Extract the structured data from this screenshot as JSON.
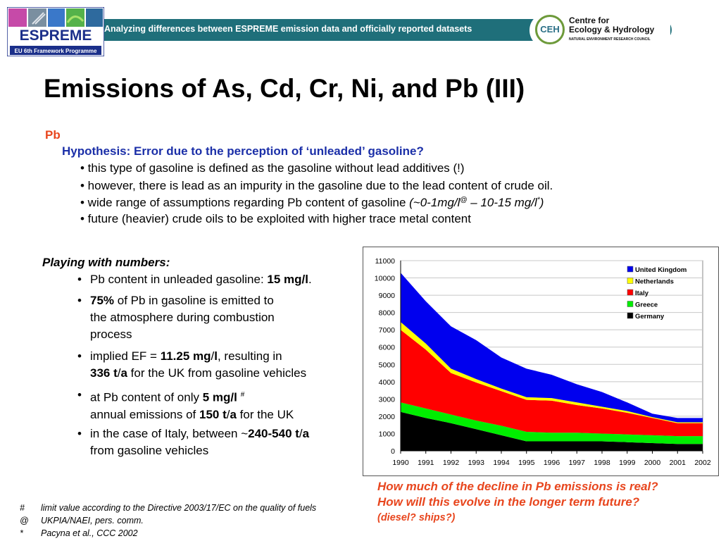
{
  "header": {
    "band_text": "Analyzing differences between ESPREME emission data and officially reported datasets",
    "left_logo": {
      "name": "ESPREME",
      "subtitle": "EU 6th Framework Programme"
    },
    "right_logo": {
      "mark": "CEH",
      "name_line1": "Centre for",
      "name_line2": "Ecology & Hydrology",
      "subtitle": "NATURAL ENVIRONMENT RESEARCH COUNCIL"
    }
  },
  "title": "Emissions of As, Cd, Cr, Ni, and Pb (III)",
  "pb_section": {
    "heading": "Pb",
    "hypothesis": "Hypothesis: Error due to the perception of ‘unleaded’ gasoline?",
    "bullets": [
      "• this type of gasoline is defined as the gasoline without lead additives (!)",
      "• however, there is lead as an impurity in the gasoline due to the lead content of crude oil.",
      "• wide range of assumptions regarding Pb content of gasoline ",
      "• future (heavier) crude oils to be exploited with higher trace metal content"
    ],
    "range_a": "(~0-1mg/l",
    "range_a_sup": "@",
    "range_b": " – 10-15 mg/l",
    "range_b_sup": "*",
    "range_close": ")"
  },
  "playing": {
    "title": "Playing with numbers:",
    "bullet": "•",
    "i1_a": "Pb content in unleaded gasoline: ",
    "i1_b": "15 mg/l",
    "i1_c": ".",
    "i2_a": "75%",
    "i2_b": " of Pb in gasoline is emitted to",
    "i2_l2": "the atmosphere during combustion",
    "i2_l3": "process",
    "i3_a": "implied EF = ",
    "i3_b": "11.25 mg",
    "i3_c": "/",
    "i3_d": "l",
    "i3_e": ", resulting in",
    "i3_l2a": "336 t",
    "i3_l2b": "/",
    "i3_l2c": "a",
    "i3_l2d": " for the UK from gasoline vehicles",
    "i4_a": "at Pb content of only ",
    "i4_b": "5 mg/l",
    "i4_sup": "#",
    "i4_l2a": "annual emissions of ",
    "i4_l2b": "150 t",
    "i4_l2c": "/",
    "i4_l2d": "a",
    "i4_l2e": " for the UK",
    "i5_a": "in the case of Italy, between ~",
    "i5_b": "240-540 t",
    "i5_c": "/",
    "i5_d": "a",
    "i5_l2": "from gasoline vehicles"
  },
  "questions": {
    "q1": "How much of the decline in Pb emissions is real?",
    "q2": "How will this evolve in the longer term future?",
    "q3": "(diesel? ships?)"
  },
  "footnotes": [
    {
      "symbol": "#",
      "text": "limit value according to the  Directive 2003/17/EC on the quality of fuels"
    },
    {
      "symbol": "@",
      "text": "UKPIA/NAEI, pers. comm."
    },
    {
      "symbol": "*",
      "text": "Pacyna et al., CCC 2002"
    }
  ],
  "chart_data": {
    "type": "area",
    "stacked": true,
    "x": [
      1990,
      1991,
      1992,
      1993,
      1994,
      1995,
      1996,
      1997,
      1998,
      1999,
      2000,
      2001,
      2002
    ],
    "ylim": [
      0,
      11000
    ],
    "yticks": [
      0,
      1000,
      2000,
      3000,
      4000,
      5000,
      6000,
      7000,
      8000,
      9000,
      10000,
      11000
    ],
    "grid": true,
    "legend_position": "top-right",
    "series": [
      {
        "name": "Germany",
        "color": "#000000",
        "values": [
          2250,
          1900,
          1600,
          1250,
          900,
          550,
          550,
          550,
          550,
          500,
          450,
          400,
          400
        ]
      },
      {
        "name": "Greece",
        "color": "#00ee00",
        "values": [
          550,
          550,
          500,
          500,
          550,
          550,
          500,
          500,
          450,
          450,
          450,
          450,
          450
        ]
      },
      {
        "name": "Italy",
        "color": "#ff0000",
        "values": [
          4200,
          3400,
          2400,
          2200,
          2000,
          1850,
          1850,
          1600,
          1450,
          1250,
          1000,
          750,
          750
        ]
      },
      {
        "name": "Netherlands",
        "color": "#ffff00",
        "values": [
          450,
          350,
          250,
          200,
          150,
          150,
          150,
          150,
          100,
          100,
          50,
          50,
          50
        ]
      },
      {
        "name": "United Kingdom",
        "color": "#0000ee",
        "values": [
          2850,
          2450,
          2450,
          2250,
          1800,
          1650,
          1350,
          1050,
          850,
          500,
          200,
          250,
          250
        ]
      }
    ]
  }
}
